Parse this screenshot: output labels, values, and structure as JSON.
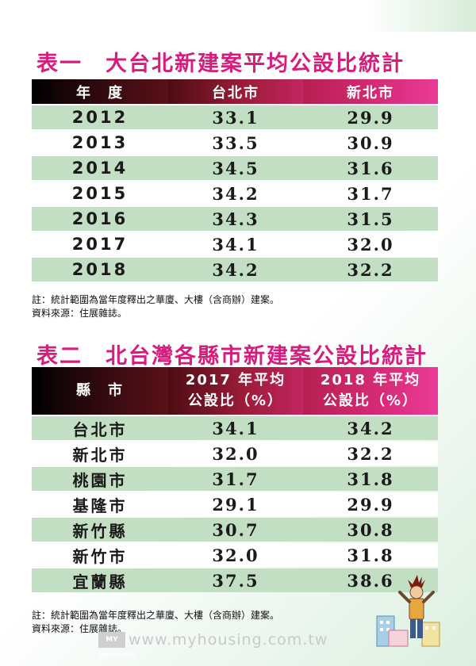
{
  "table1": {
    "title": "表一　大台北新建案平均公設比統計",
    "headers": [
      "年　度",
      "台北市",
      "新北市"
    ],
    "rows": [
      {
        "year": "2012",
        "taipei": "33.1",
        "newtaipei": "29.9"
      },
      {
        "year": "2013",
        "taipei": "33.5",
        "newtaipei": "30.9"
      },
      {
        "year": "2014",
        "taipei": "34.5",
        "newtaipei": "31.6"
      },
      {
        "year": "2015",
        "taipei": "34.2",
        "newtaipei": "31.7"
      },
      {
        "year": "2016",
        "taipei": "34.3",
        "newtaipei": "31.5"
      },
      {
        "year": "2017",
        "taipei": "34.1",
        "newtaipei": "32.0"
      },
      {
        "year": "2018",
        "taipei": "34.2",
        "newtaipei": "32.2"
      }
    ],
    "note": "註：統計範圍為當年度釋出之華廈、大樓（含商辦）建案。",
    "source": "資料來源：住展雜誌。"
  },
  "table2": {
    "title": "表二　北台灣各縣市新建案公設比統計",
    "header_city": "縣　市",
    "header_2017_line1": "2017 年平均",
    "header_2017_line2": "公設比（%）",
    "header_2018_line1": "2018 年平均",
    "header_2018_line2": "公設比（%）",
    "rows": [
      {
        "city": "台北市",
        "v2017": "34.1",
        "v2018": "34.2"
      },
      {
        "city": "新北市",
        "v2017": "32.0",
        "v2018": "32.2"
      },
      {
        "city": "桃園市",
        "v2017": "31.7",
        "v2018": "31.8"
      },
      {
        "city": "基隆市",
        "v2017": "29.1",
        "v2018": "29.9"
      },
      {
        "city": "新竹縣",
        "v2017": "30.7",
        "v2018": "30.8"
      },
      {
        "city": "新竹市",
        "v2017": "32.0",
        "v2018": "31.8"
      },
      {
        "city": "宜蘭縣",
        "v2017": "37.5",
        "v2018": "38.6"
      }
    ],
    "note": "註：統計範圍為當年度釋出之華廈、大樓（含商辦）建案。",
    "source": "資料來源：住展雜誌。"
  },
  "watermark": {
    "logo": "MY HOUSING",
    "url": "www.myhousing.com.tw"
  },
  "colors": {
    "title": "#d51d7d",
    "row_green": "#c3dfc3",
    "header_dark": "#000000",
    "header_magenta": "#ea3a96"
  },
  "icons": {
    "illustration": "shocked-person-with-buildings-icon"
  }
}
